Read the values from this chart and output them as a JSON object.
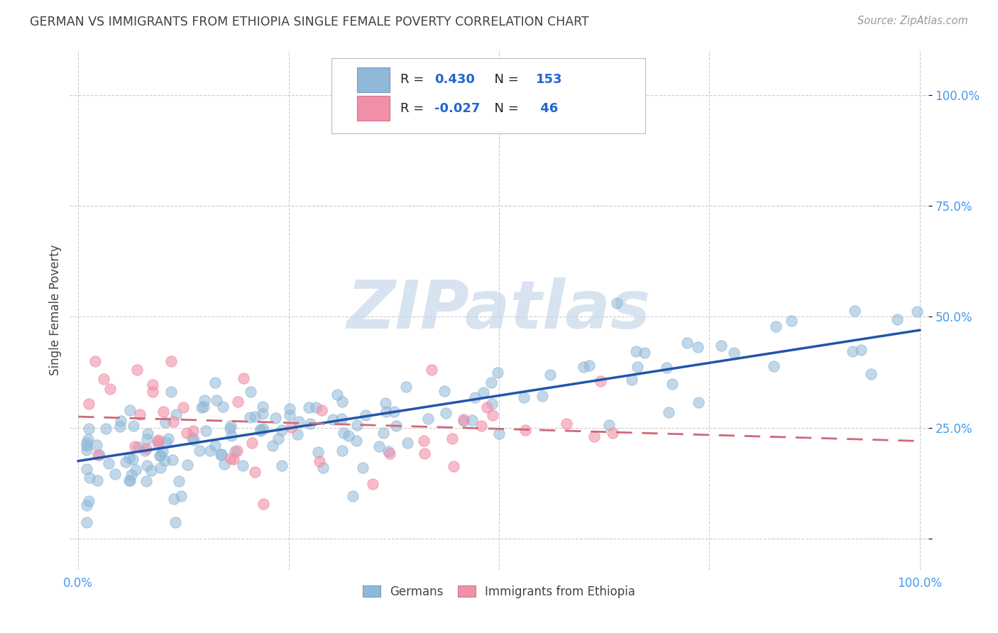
{
  "title": "GERMAN VS IMMIGRANTS FROM ETHIOPIA SINGLE FEMALE POVERTY CORRELATION CHART",
  "source": "Source: ZipAtlas.com",
  "ylabel": "Single Female Poverty",
  "watermark": "ZIPatlas",
  "german_R": "0.430",
  "german_N": "153",
  "ethiopia_R": "-0.027",
  "ethiopia_N": "46",
  "german_color": "#90b8d8",
  "ethiopia_color": "#f090a8",
  "german_line_color": "#2255aa",
  "ethiopia_line_color": "#d06878",
  "background_color": "#ffffff",
  "grid_color": "#cccccc",
  "title_color": "#404040",
  "source_color": "#999999",
  "tick_color": "#4499ee",
  "ylabel_color": "#444444",
  "legend_text_black": "#222222",
  "legend_text_blue": "#2266cc",
  "watermark_color": "#c8d8ea"
}
